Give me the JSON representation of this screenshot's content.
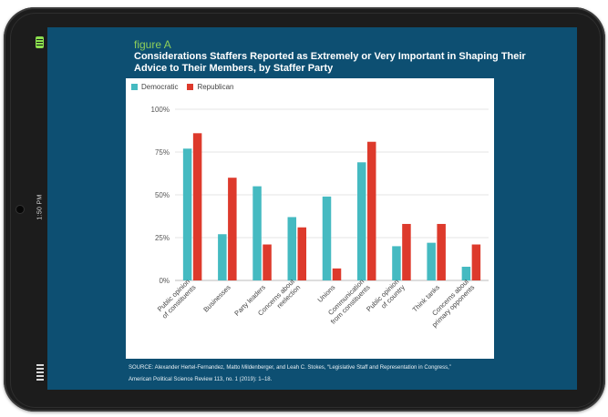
{
  "device": {
    "clock": "1:50 PM"
  },
  "figure": {
    "label": "figure A",
    "title": "Considerations Staffers Reported as Extremely or Very Important in Shaping Their Advice to Their Members, by Staffer Party",
    "source_line1": "SOURCE: Alexander Hertel-Fernandez, Matto Mildenberger, and Leah C. Stokes, “Legislative Staff and Representation in Congress,”",
    "source_line2": "American Political Science Review 113, no. 1 (2019): 1–18."
  },
  "colors": {
    "democratic": "#45bac1",
    "republican": "#dd3a2c",
    "screen": "#0d4f72",
    "accent_green": "#8fcf5a"
  },
  "chart_data": {
    "type": "bar",
    "title": "Considerations Staffers Reported as Extremely or Very Important in Shaping Their Advice to Their Members, by Staffer Party",
    "xlabel": "",
    "ylabel": "",
    "ylim": [
      0,
      100
    ],
    "y_ticks": [
      0,
      25,
      50,
      75,
      100
    ],
    "y_tick_labels": [
      "0%",
      "25%",
      "50%",
      "75%",
      "100%"
    ],
    "grid": true,
    "legend_position": "top-left",
    "categories": [
      [
        "Public opinion",
        "of constituents"
      ],
      [
        "Businesses"
      ],
      [
        "Party leaders"
      ],
      [
        "Concerns about",
        "reelection"
      ],
      [
        "Unions"
      ],
      [
        "Communication",
        "from constituents"
      ],
      [
        "Public opinion",
        "of country"
      ],
      [
        "Think tanks"
      ],
      [
        "Concerns about",
        "primary opponents"
      ]
    ],
    "series": [
      {
        "name": "Democratic",
        "values": [
          77,
          27,
          55,
          37,
          49,
          69,
          20,
          22,
          8
        ]
      },
      {
        "name": "Republican",
        "values": [
          86,
          60,
          21,
          31,
          7,
          81,
          33,
          33,
          21
        ]
      }
    ]
  }
}
